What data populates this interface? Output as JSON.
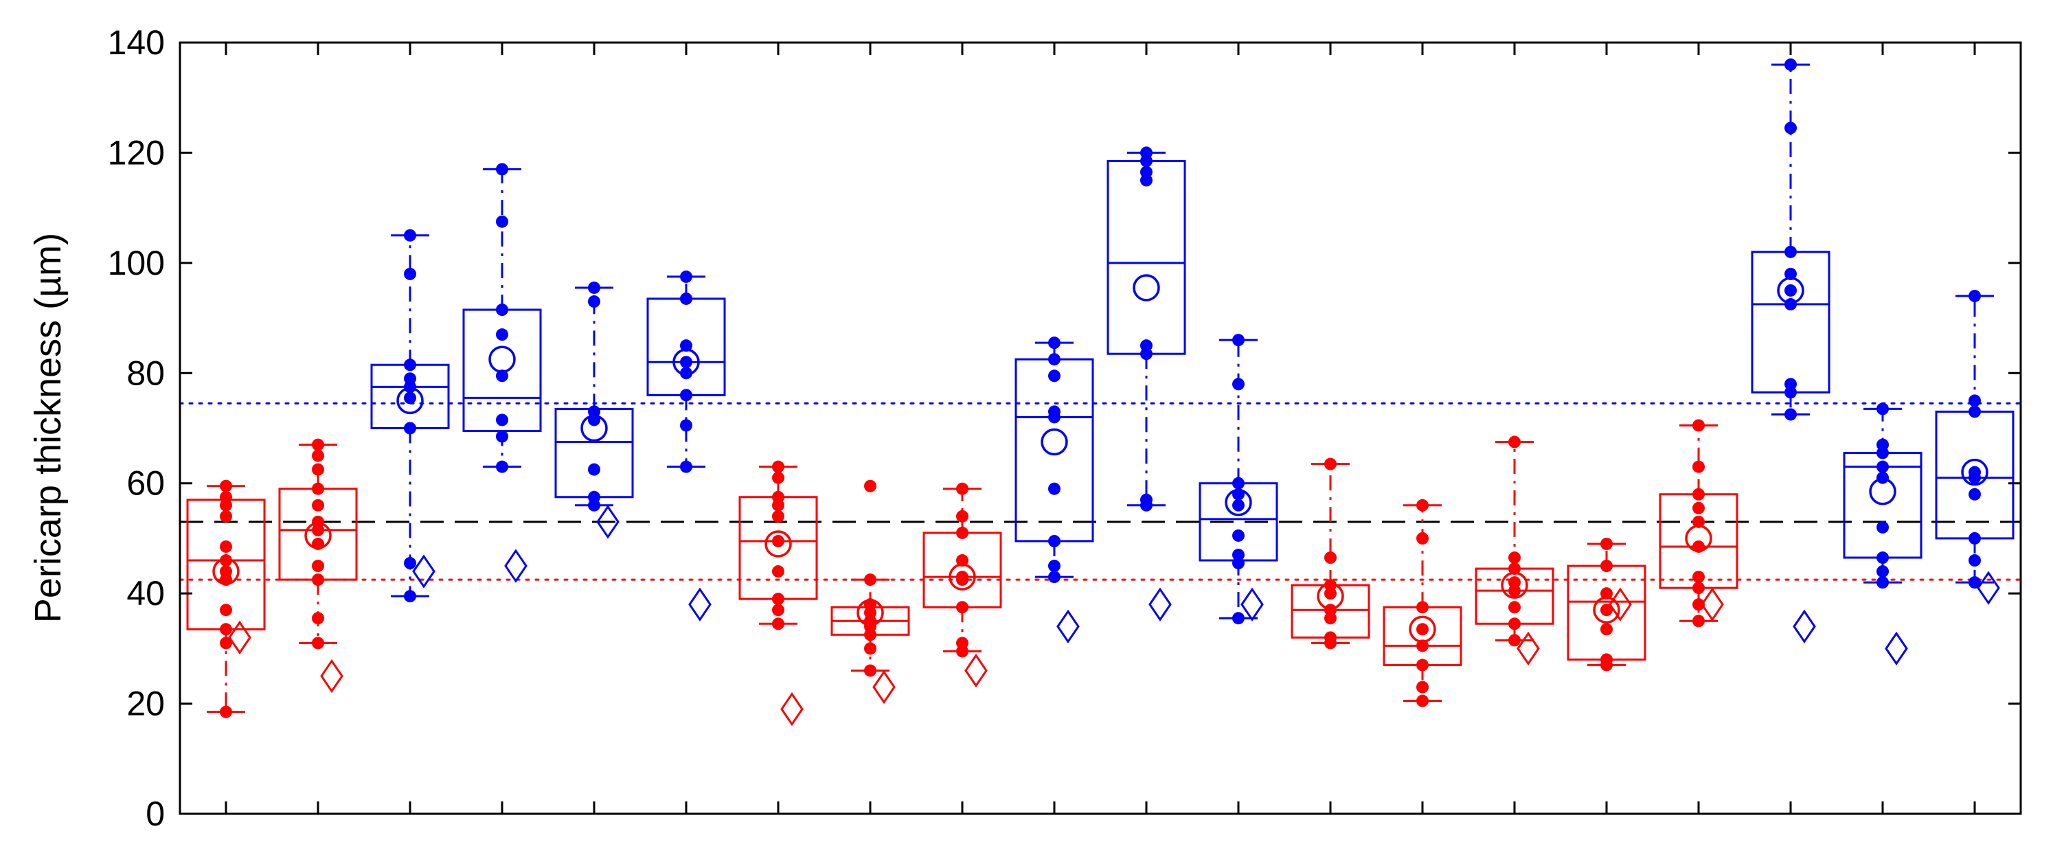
{
  "chart_data": {
    "type": "box",
    "ylabel": "Pericarp thickness (µm)",
    "xlabel": "",
    "ylim": [
      0,
      140
    ],
    "yticks": [
      0,
      20,
      40,
      60,
      80,
      100,
      120,
      140
    ],
    "grid": false,
    "reference_lines": [
      {
        "value": 74.5,
        "style": "dotted",
        "color": "#0000ff"
      },
      {
        "value": 53,
        "style": "dashed",
        "color": "#000000"
      },
      {
        "value": 42.5,
        "style": "dotted",
        "color": "#ff0000"
      }
    ],
    "groups": [
      {
        "color": "#ff0000",
        "q1": 33.5,
        "median": 46,
        "q3": 57,
        "whisker_low": 18.5,
        "whisker_high": 59.5,
        "mean": 44,
        "diamond": 32,
        "points": [
          18.5,
          31,
          33.5,
          37,
          42.5,
          44,
          46,
          48.5,
          54,
          56,
          57.5,
          59.5
        ]
      },
      {
        "color": "#ff0000",
        "q1": 42.5,
        "median": 51.5,
        "q3": 59,
        "whisker_low": 31,
        "whisker_high": 67,
        "mean": 50.5,
        "diamond": 25,
        "points": [
          31,
          35.5,
          42.5,
          45,
          49,
          51.5,
          53,
          56,
          59,
          62.5,
          65,
          67
        ]
      },
      {
        "color": "#0000ff",
        "q1": 70,
        "median": 77.5,
        "q3": 81.5,
        "whisker_low": 39.5,
        "whisker_high": 105,
        "mean": 75,
        "diamond": 44,
        "points": [
          39.5,
          45.5,
          70,
          75.5,
          77.5,
          79,
          81.5,
          98,
          105
        ]
      },
      {
        "color": "#0000ff",
        "q1": 69.5,
        "median": 75.5,
        "q3": 91.5,
        "whisker_low": 63,
        "whisker_high": 117,
        "mean": 82.5,
        "diamond": 45,
        "points": [
          63,
          68.5,
          71.5,
          79.5,
          87,
          91.5,
          107.5,
          117
        ]
      },
      {
        "color": "#0000ff",
        "q1": 57.5,
        "median": 67.5,
        "q3": 73.5,
        "whisker_low": 56,
        "whisker_high": 95.5,
        "mean": 70,
        "diamond": 53,
        "points": [
          56,
          57.5,
          62.5,
          71.5,
          73,
          93,
          95.5
        ]
      },
      {
        "color": "#0000ff",
        "q1": 76,
        "median": 82,
        "q3": 93.5,
        "whisker_low": 63,
        "whisker_high": 97.5,
        "mean": 82,
        "diamond": 38,
        "points": [
          63,
          70.5,
          76,
          80,
          82,
          85,
          93.5,
          97.5
        ]
      },
      {
        "color": "#ff0000",
        "q1": 39,
        "median": 49.5,
        "q3": 57.5,
        "whisker_low": 34.5,
        "whisker_high": 63,
        "mean": 49,
        "diamond": 19,
        "points": [
          34.5,
          37,
          39,
          44,
          49.5,
          54,
          56,
          57.5,
          61,
          63
        ]
      },
      {
        "color": "#ff0000",
        "q1": 32.5,
        "median": 35,
        "q3": 37.5,
        "whisker_low": 26,
        "whisker_high": 42.5,
        "mean": 36.5,
        "diamond": 23,
        "points": [
          26,
          30,
          32.5,
          34,
          35,
          36.5,
          38,
          42.5,
          59.5
        ]
      },
      {
        "color": "#ff0000",
        "q1": 37.5,
        "median": 43,
        "q3": 51,
        "whisker_low": 29.5,
        "whisker_high": 59,
        "mean": 43,
        "diamond": 26,
        "points": [
          29.5,
          31,
          37.5,
          42.5,
          43,
          46,
          51,
          54,
          59
        ]
      },
      {
        "color": "#0000ff",
        "q1": 49.5,
        "median": 72,
        "q3": 82.5,
        "whisker_low": 43,
        "whisker_high": 85.5,
        "mean": 67.5,
        "diamond": 34,
        "points": [
          43,
          45,
          49.5,
          59,
          72,
          73,
          79.5,
          82.5,
          85.5
        ]
      },
      {
        "color": "#0000ff",
        "q1": 83.5,
        "median": 100,
        "q3": 118.5,
        "whisker_low": 56,
        "whisker_high": 120,
        "mean": 95.5,
        "diamond": 38,
        "points": [
          56,
          57,
          83.5,
          85,
          115,
          116.5,
          118.5,
          120
        ]
      },
      {
        "color": "#0000ff",
        "q1": 46,
        "median": 53.5,
        "q3": 60,
        "whisker_low": 35.5,
        "whisker_high": 86,
        "mean": 56.5,
        "diamond": 38,
        "points": [
          35.5,
          45.5,
          47,
          50.5,
          56,
          58,
          60,
          78,
          86
        ]
      },
      {
        "color": "#ff0000",
        "q1": 32,
        "median": 37,
        "q3": 41.5,
        "whisker_low": 31,
        "whisker_high": 63.5,
        "mean": 39.5,
        "diamond": null,
        "points": [
          31,
          32,
          35.5,
          37,
          40,
          41.5,
          46.5,
          63.5
        ]
      },
      {
        "color": "#ff0000",
        "q1": 27,
        "median": 30.5,
        "q3": 37.5,
        "whisker_low": 20.5,
        "whisker_high": 56,
        "mean": 33.5,
        "diamond": null,
        "points": [
          20.5,
          23,
          27,
          30.5,
          33.5,
          37.5,
          50,
          56
        ]
      },
      {
        "color": "#ff0000",
        "q1": 34.5,
        "median": 40.5,
        "q3": 44.5,
        "whisker_low": 31.5,
        "whisker_high": 67.5,
        "mean": 41.5,
        "diamond": 30,
        "points": [
          31.5,
          34.5,
          37.5,
          40.5,
          42,
          44.5,
          46.5,
          67.5
        ]
      },
      {
        "color": "#ff0000",
        "q1": 28,
        "median": 38.5,
        "q3": 45,
        "whisker_low": 27,
        "whisker_high": 49,
        "mean": 37,
        "diamond": 38,
        "points": [
          27,
          28,
          33.5,
          37,
          40,
          45,
          49
        ]
      },
      {
        "color": "#ff0000",
        "q1": 41,
        "median": 48.5,
        "q3": 58,
        "whisker_low": 35,
        "whisker_high": 70.5,
        "mean": 50,
        "diamond": 38,
        "points": [
          35,
          38,
          41,
          43,
          48.5,
          53,
          55.5,
          58,
          63,
          70.5
        ]
      },
      {
        "color": "#0000ff",
        "q1": 76.5,
        "median": 92.5,
        "q3": 102,
        "whisker_low": 72.5,
        "whisker_high": 136,
        "mean": 95,
        "diamond": 34,
        "points": [
          72.5,
          76.5,
          78,
          92.5,
          95,
          98,
          102,
          124.5,
          136
        ]
      },
      {
        "color": "#0000ff",
        "q1": 46.5,
        "median": 63,
        "q3": 65.5,
        "whisker_low": 42,
        "whisker_high": 73.5,
        "mean": 58.5,
        "diamond": 30,
        "points": [
          42,
          44,
          46.5,
          52,
          61,
          63,
          65.5,
          67,
          73.5
        ]
      },
      {
        "color": "#0000ff",
        "q1": 50,
        "median": 61,
        "q3": 73,
        "whisker_low": 42,
        "whisker_high": 94,
        "mean": 62,
        "diamond": 41,
        "points": [
          42,
          46,
          50,
          58,
          61,
          62,
          73,
          75,
          94
        ]
      }
    ]
  }
}
